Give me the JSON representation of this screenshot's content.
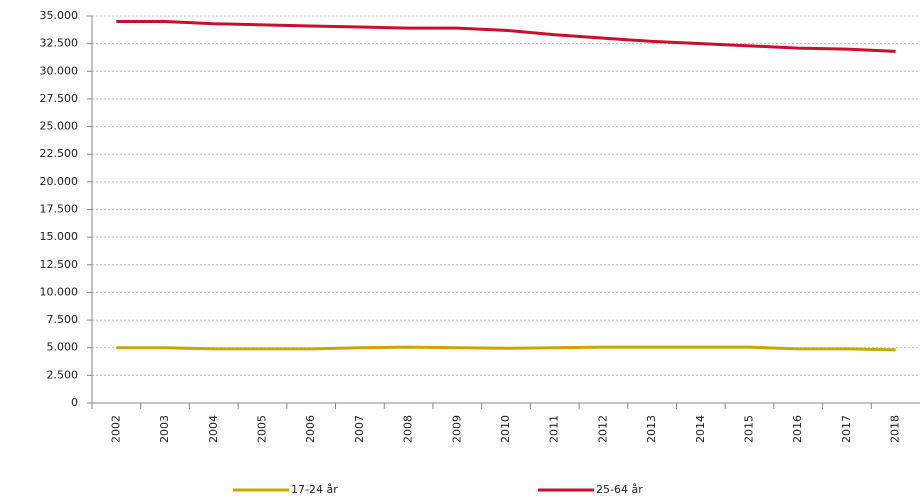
{
  "chart_data": {
    "type": "line",
    "categories": [
      "2002",
      "2003",
      "2004",
      "2005",
      "2006",
      "2007",
      "2008",
      "2009",
      "2010",
      "2011",
      "2012",
      "2013",
      "2014",
      "2015",
      "2016",
      "2017",
      "2018"
    ],
    "series": [
      {
        "name": "17-24 år",
        "color": "#c9a800",
        "values": [
          5000,
          5000,
          4900,
          4900,
          4900,
          5000,
          5050,
          5000,
          4950,
          5000,
          5050,
          5050,
          5050,
          5050,
          4900,
          4900,
          4800
        ]
      },
      {
        "name": "25-64 år",
        "color": "#c8102e",
        "values": [
          34500,
          34500,
          34300,
          34200,
          34100,
          34000,
          33900,
          33900,
          33700,
          33300,
          33000,
          32700,
          32500,
          32300,
          32100,
          32000,
          31800
        ]
      }
    ],
    "ylim": [
      0,
      35000
    ],
    "yticks": [
      0,
      {
        "value": 2500,
        "label": "2.500"
      },
      {
        "value": 5000,
        "label": "5.000"
      },
      {
        "value": 7500,
        "label": "7.500"
      },
      {
        "value": 10000,
        "label": "10.000"
      },
      {
        "value": 12500,
        "label": "12.500"
      },
      {
        "value": 15000,
        "label": "15.000"
      },
      {
        "value": 17500,
        "label": "17.500"
      },
      {
        "value": 20000,
        "label": "20.000"
      },
      {
        "value": 22500,
        "label": "22.500"
      },
      {
        "value": 25000,
        "label": "25.000"
      },
      {
        "value": 27500,
        "label": "27.500"
      },
      {
        "value": 30000,
        "label": "30.000"
      },
      {
        "value": 32500,
        "label": "32.500"
      },
      {
        "value": 35000,
        "label": "35.000"
      }
    ],
    "grid": true
  }
}
